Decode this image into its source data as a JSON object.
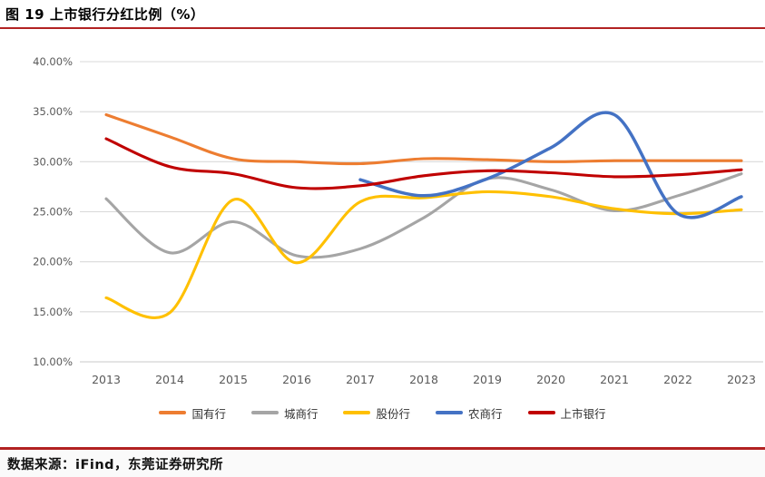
{
  "header": {
    "title": "图 19 上市银行分红比例（%）"
  },
  "footer": {
    "source": "数据来源：iFind，东莞证券研究所"
  },
  "colors": {
    "rule_red": "#b22222",
    "grid": "#d9d9d9",
    "axis_line": "#c9c9c9",
    "axis_text": "#595959",
    "footer_bg": "#fafafa",
    "background": "#ffffff"
  },
  "chart_data": {
    "type": "line",
    "title": "上市银行分红比例（%）",
    "xlabel": "",
    "ylabel": "",
    "categories": [
      "2013",
      "2014",
      "2015",
      "2016",
      "2017",
      "2018",
      "2019",
      "2020",
      "2021",
      "2022",
      "2023"
    ],
    "y_ticks": [
      "40.00%",
      "35.00%",
      "30.00%",
      "25.00%",
      "20.00%",
      "15.00%",
      "10.00%"
    ],
    "y_tick_values": [
      40,
      35,
      30,
      25,
      20,
      15,
      10
    ],
    "ylim": [
      10,
      40
    ],
    "grid": "horizontal",
    "smooth": true,
    "legend_position": "bottom",
    "series": [
      {
        "name": "国有行",
        "color": "#ED7D31",
        "values": [
          34.7,
          32.5,
          30.3,
          30.0,
          29.8,
          30.3,
          30.2,
          30.0,
          30.1,
          30.1,
          30.1
        ]
      },
      {
        "name": "城商行",
        "color": "#A5A5A5",
        "values": [
          26.3,
          20.9,
          24.0,
          20.6,
          21.3,
          24.4,
          28.3,
          27.2,
          25.1,
          26.6,
          28.8
        ]
      },
      {
        "name": "股份行",
        "color": "#FFC000",
        "values": [
          16.4,
          14.9,
          26.2,
          19.9,
          26.0,
          26.4,
          27.0,
          26.5,
          25.3,
          24.8,
          25.2
        ]
      },
      {
        "name": "农商行",
        "color": "#4472C4",
        "values": [
          null,
          null,
          null,
          null,
          28.2,
          26.6,
          28.3,
          31.4,
          34.7,
          24.8,
          26.5
        ]
      },
      {
        "name": "上市银行",
        "color": "#C00000",
        "values": [
          32.3,
          29.5,
          28.8,
          27.4,
          27.6,
          28.6,
          29.1,
          28.9,
          28.5,
          28.7,
          29.2
        ]
      }
    ]
  }
}
